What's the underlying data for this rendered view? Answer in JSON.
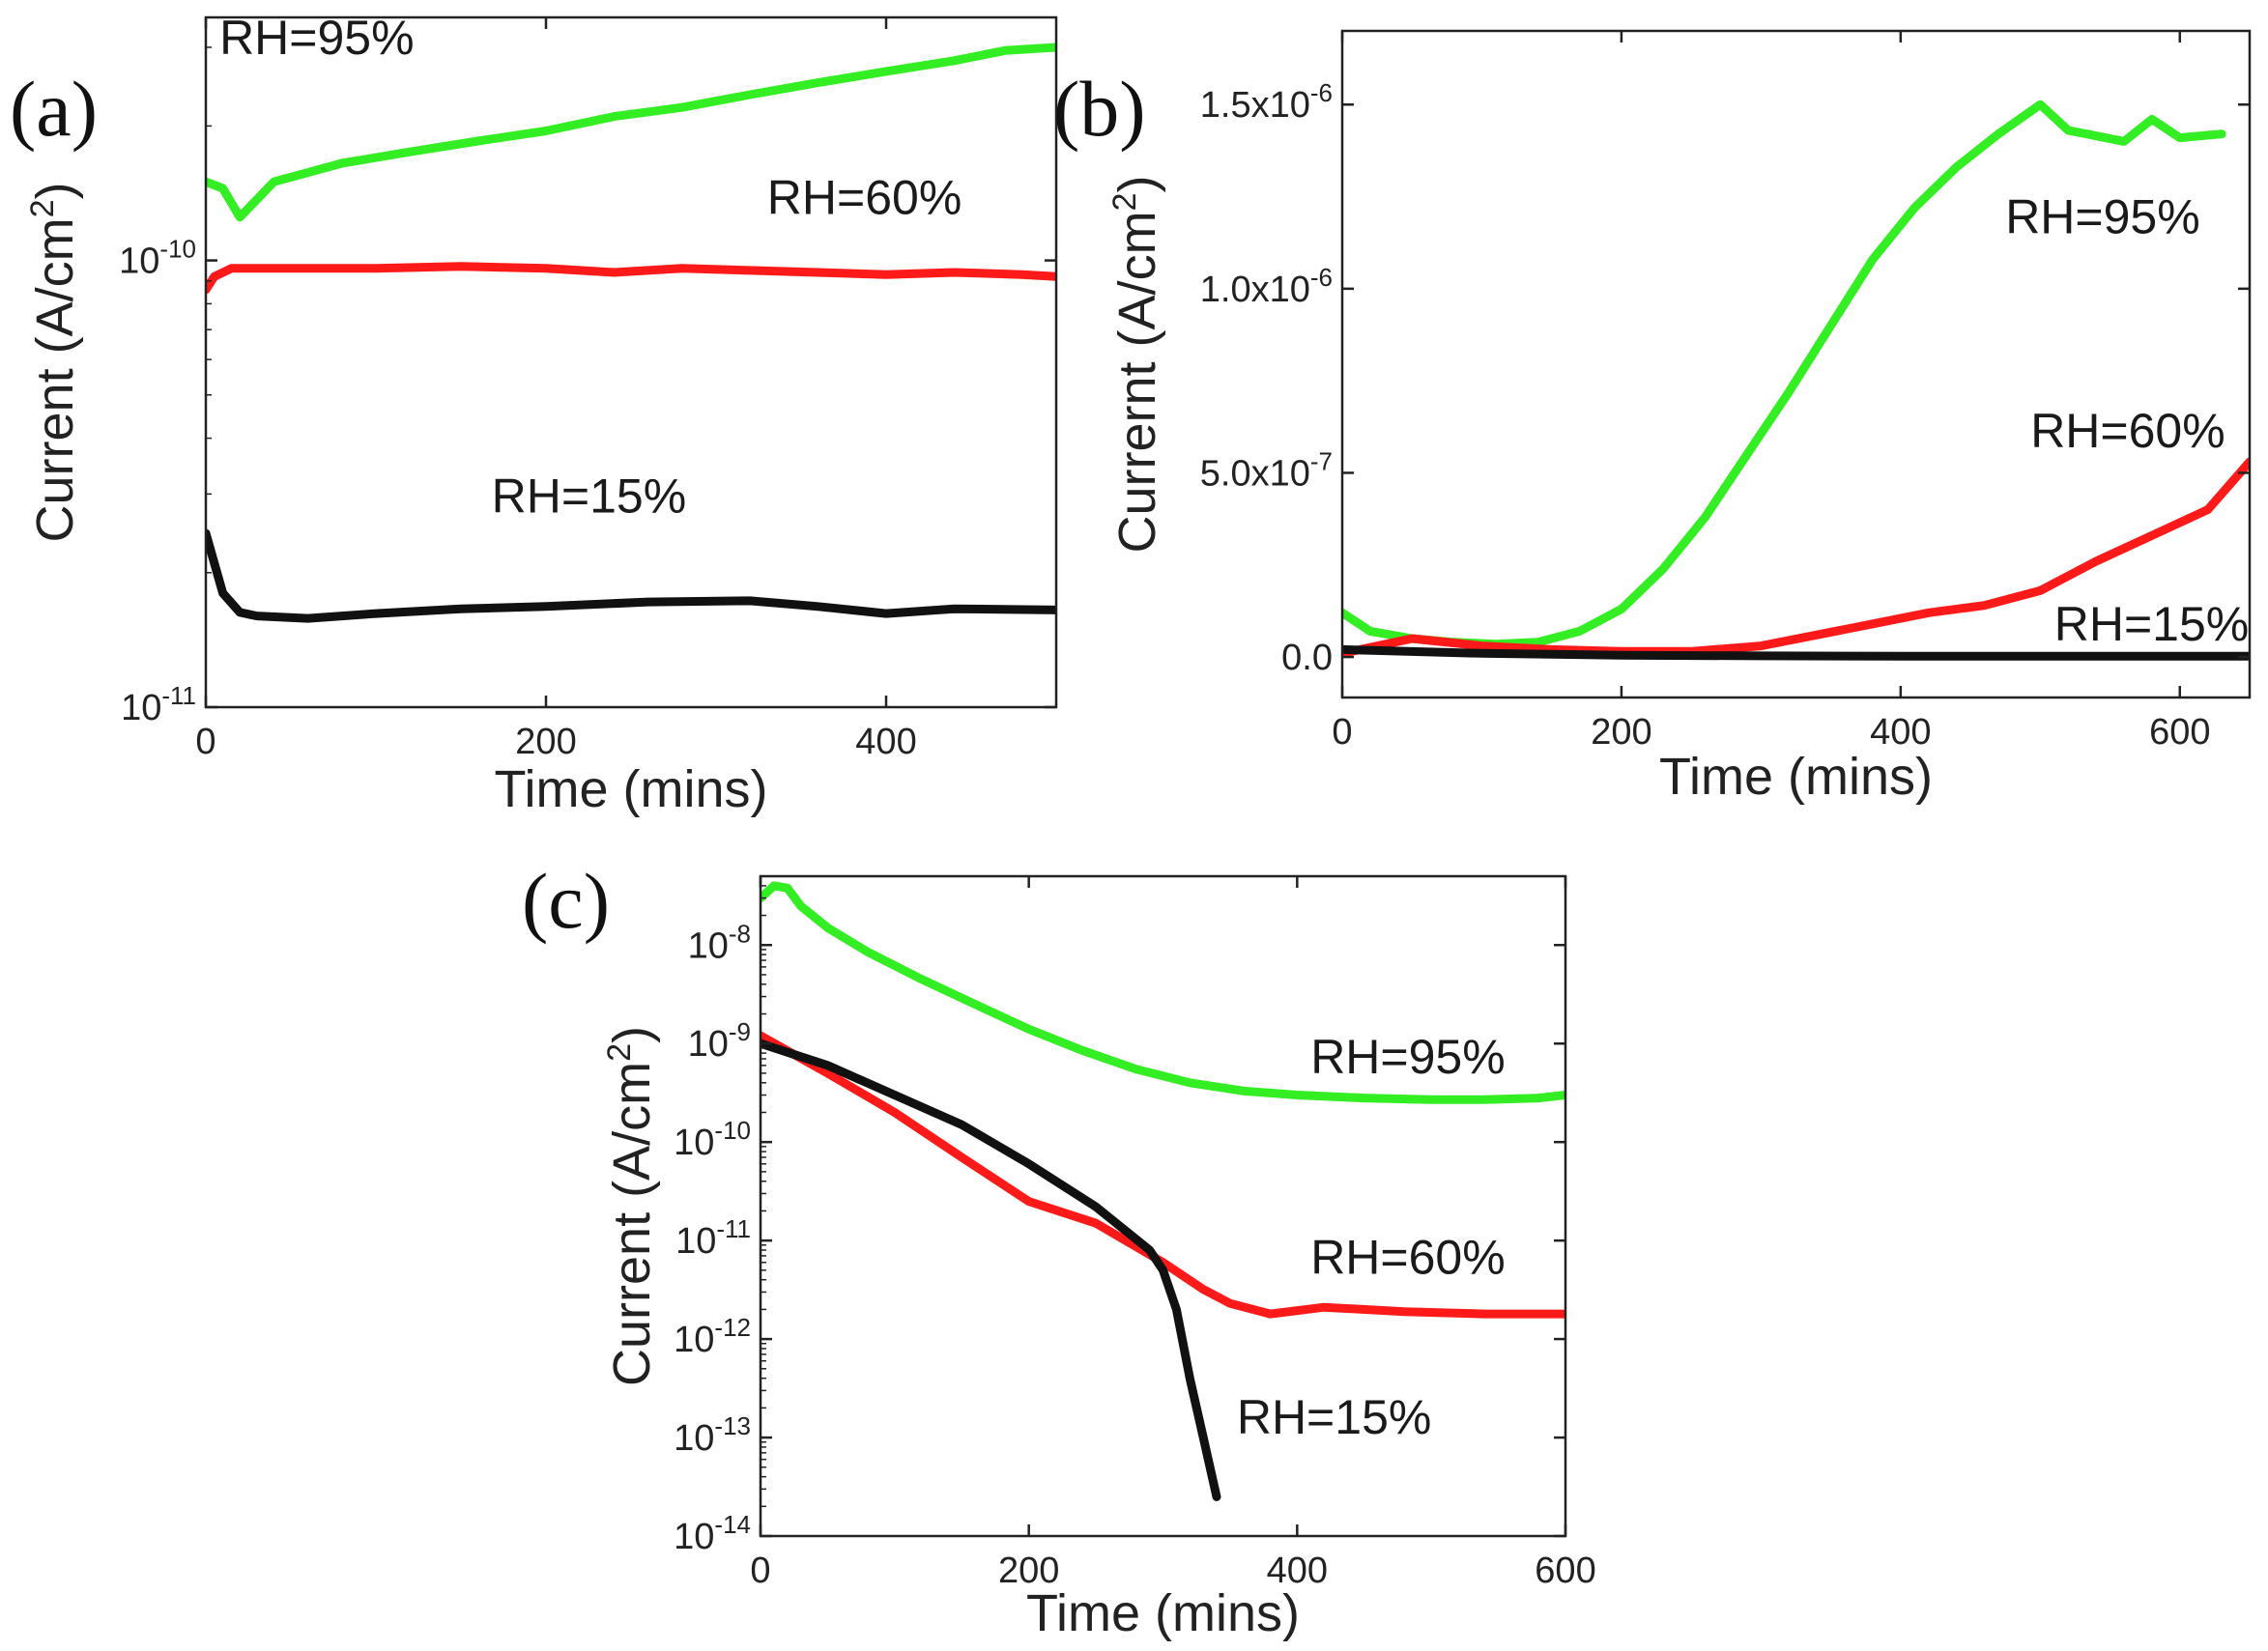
{
  "chart_data": [
    {
      "panel": "(a)",
      "type": "line",
      "xlabel": "Time (mins)",
      "ylabel": "Current (A/cm",
      "ylabel_sup": "2",
      "ylabel_close": ")",
      "yscale": "log",
      "xlim": [
        0,
        500
      ],
      "ylim": [
        1e-11,
        3.5e-10
      ],
      "x_ticks": [
        {
          "v": 0,
          "t": "0"
        },
        {
          "v": 200,
          "t": "200"
        },
        {
          "v": 400,
          "t": "400"
        }
      ],
      "y_ticks": [
        {
          "v": 1e-11,
          "base": "10",
          "exp": "-11"
        },
        {
          "v": 1e-10,
          "base": "10",
          "exp": "-10"
        }
      ],
      "series": [
        {
          "name": "RH=95%",
          "color": "#33ee22",
          "x": [
            0,
            10,
            20,
            40,
            80,
            120,
            160,
            200,
            240,
            280,
            320,
            360,
            400,
            440,
            470,
            500
          ],
          "y": [
            1.5e-10,
            1.45e-10,
            1.25e-10,
            1.5e-10,
            1.65e-10,
            1.75e-10,
            1.85e-10,
            1.95e-10,
            2.1e-10,
            2.2e-10,
            2.35e-10,
            2.5e-10,
            2.65e-10,
            2.8e-10,
            2.95e-10,
            3e-10
          ]
        },
        {
          "name": "RH=60%",
          "color": "#ff1a1a",
          "x": [
            0,
            5,
            15,
            40,
            100,
            150,
            200,
            240,
            280,
            320,
            360,
            400,
            440,
            480,
            500
          ],
          "y": [
            8.6e-11,
            9.2e-11,
            9.6e-11,
            9.6e-11,
            9.6e-11,
            9.7e-11,
            9.6e-11,
            9.4e-11,
            9.6e-11,
            9.5e-11,
            9.4e-11,
            9.3e-11,
            9.4e-11,
            9.3e-11,
            9.2e-11
          ]
        },
        {
          "name": "RH=15%",
          "color": "#111111",
          "x": [
            0,
            5,
            10,
            20,
            30,
            60,
            100,
            150,
            200,
            260,
            320,
            360,
            400,
            440,
            500
          ],
          "y": [
            2.45e-11,
            2.1e-11,
            1.8e-11,
            1.63e-11,
            1.6e-11,
            1.58e-11,
            1.62e-11,
            1.66e-11,
            1.68e-11,
            1.72e-11,
            1.73e-11,
            1.68e-11,
            1.62e-11,
            1.66e-11,
            1.65e-11
          ]
        }
      ],
      "annotations": [
        {
          "text": "RH=95%",
          "x": 8,
          "y": 2.9e-10,
          "anchor": "start"
        },
        {
          "text": "RH=60%",
          "x": 330,
          "y": 1.27e-10,
          "anchor": "start"
        },
        {
          "text": "RH=15%",
          "x": 168,
          "y": 2.73e-11,
          "anchor": "start"
        }
      ]
    },
    {
      "panel": "(b)",
      "type": "line",
      "xlabel": "Time (mins)",
      "ylabel": "Currernt (A/cm",
      "ylabel_sup": "2",
      "ylabel_close": ")",
      "yscale": "linear",
      "xlim": [
        0,
        650
      ],
      "ylim": [
        -1.1e-07,
        1.7e-06
      ],
      "x_ticks": [
        {
          "v": 0,
          "t": "0"
        },
        {
          "v": 200,
          "t": "200"
        },
        {
          "v": 400,
          "t": "400"
        },
        {
          "v": 600,
          "t": "600"
        }
      ],
      "y_ticks": [
        {
          "v": 0,
          "t": "0.0"
        },
        {
          "v": 5e-07,
          "t": "5.0x10",
          "exp": "-7"
        },
        {
          "v": 1e-06,
          "t": "1.0x10",
          "exp": "-6"
        },
        {
          "v": 1.5e-06,
          "t": "1.5x10",
          "exp": "-6"
        }
      ],
      "series": [
        {
          "name": "RH=95%",
          "color": "#33ee22",
          "x": [
            0,
            20,
            50,
            80,
            110,
            140,
            170,
            200,
            230,
            260,
            290,
            320,
            350,
            380,
            410,
            440,
            470,
            500,
            520,
            560,
            580,
            600,
            630
          ],
          "y": [
            1.2e-07,
            7e-08,
            5e-08,
            4e-08,
            3.5e-08,
            4e-08,
            7e-08,
            1.3e-07,
            2.4e-07,
            3.8e-07,
            5.5e-07,
            7.2e-07,
            9e-07,
            1.08e-06,
            1.22e-06,
            1.33e-06,
            1.42e-06,
            1.5e-06,
            1.43e-06,
            1.4e-06,
            1.46e-06,
            1.41e-06,
            1.42e-06
          ]
        },
        {
          "name": "RH=60%",
          "color": "#ff1a1a",
          "x": [
            0,
            50,
            100,
            150,
            200,
            250,
            300,
            340,
            380,
            420,
            460,
            500,
            540,
            580,
            620,
            650
          ],
          "y": [
            1e-08,
            5e-08,
            3e-08,
            2e-08,
            1.5e-08,
            1.5e-08,
            3e-08,
            6e-08,
            9e-08,
            1.2e-07,
            1.4e-07,
            1.8e-07,
            2.6e-07,
            3.3e-07,
            4e-07,
            5.3e-07
          ]
        },
        {
          "name": "RH=15%",
          "color": "#111111",
          "x": [
            0,
            100,
            200,
            300,
            400,
            500,
            600,
            650
          ],
          "y": [
            2e-08,
            1e-08,
            5e-09,
            3e-09,
            2e-09,
            2e-09,
            2e-09,
            2e-09
          ]
        }
      ],
      "annotations": [
        {
          "text": "RH=95%",
          "x": 475,
          "y": 1.15e-06,
          "anchor": "start"
        },
        {
          "text": "RH=60%",
          "x": 493,
          "y": 5.7e-07,
          "anchor": "start"
        },
        {
          "text": "RH=15%",
          "x": 510,
          "y": 4.5e-08,
          "anchor": "start"
        }
      ]
    },
    {
      "panel": "(c)",
      "type": "line",
      "xlabel": "Time (mins)",
      "ylabel": "Current (A/cm",
      "ylabel_sup": "2",
      "ylabel_close": ")",
      "yscale": "log",
      "xlim": [
        0,
        600
      ],
      "ylim": [
        1e-14,
        5e-08
      ],
      "x_ticks": [
        {
          "v": 0,
          "t": "0"
        },
        {
          "v": 200,
          "t": "200"
        },
        {
          "v": 400,
          "t": "400"
        },
        {
          "v": 600,
          "t": "600"
        }
      ],
      "y_ticks": [
        {
          "v": 1e-14,
          "base": "10",
          "exp": "-14"
        },
        {
          "v": 1e-13,
          "base": "10",
          "exp": "-13"
        },
        {
          "v": 1e-12,
          "base": "10",
          "exp": "-12"
        },
        {
          "v": 1e-11,
          "base": "10",
          "exp": "-11"
        },
        {
          "v": 1e-10,
          "base": "10",
          "exp": "-10"
        },
        {
          "v": 1e-09,
          "base": "10",
          "exp": "-9"
        },
        {
          "v": 1e-08,
          "base": "10",
          "exp": "-8"
        }
      ],
      "series": [
        {
          "name": "RH=95%",
          "color": "#33ee22",
          "x": [
            0,
            10,
            20,
            30,
            50,
            80,
            120,
            160,
            200,
            240,
            280,
            320,
            360,
            400,
            450,
            500,
            540,
            580,
            600
          ],
          "y": [
            3e-08,
            4e-08,
            3.8e-08,
            2.5e-08,
            1.5e-08,
            8.5e-09,
            4.5e-09,
            2.5e-09,
            1.4e-09,
            8.5e-10,
            5.5e-10,
            4e-10,
            3.3e-10,
            3e-10,
            2.8e-10,
            2.7e-10,
            2.7e-10,
            2.8e-10,
            3e-10
          ]
        },
        {
          "name": "RH=60%",
          "color": "#ff1a1a",
          "x": [
            0,
            50,
            100,
            150,
            200,
            250,
            300,
            330,
            350,
            380,
            420,
            480,
            540,
            600
          ],
          "y": [
            1.2e-09,
            5e-10,
            2e-10,
            7e-11,
            2.5e-11,
            1.5e-11,
            6e-12,
            3.2e-12,
            2.3e-12,
            1.8e-12,
            2.1e-12,
            1.9e-12,
            1.8e-12,
            1.8e-12
          ]
        },
        {
          "name": "RH=15%",
          "color": "#111111",
          "x": [
            0,
            50,
            100,
            150,
            200,
            250,
            290,
            300,
            310,
            320,
            330,
            340
          ],
          "y": [
            1e-09,
            6e-10,
            3e-10,
            1.5e-10,
            6e-11,
            2.2e-11,
            8e-12,
            5e-12,
            2e-12,
            4e-13,
            1e-13,
            2.5e-14
          ]
        }
      ],
      "annotations": [
        {
          "text": "RH=95%",
          "x": 410,
          "y": 5e-10,
          "anchor": "start"
        },
        {
          "text": "RH=60%",
          "x": 410,
          "y": 4.6e-12,
          "anchor": "start"
        },
        {
          "text": "RH=15%",
          "x": 355,
          "y": 1.1e-13,
          "anchor": "start"
        }
      ]
    }
  ]
}
